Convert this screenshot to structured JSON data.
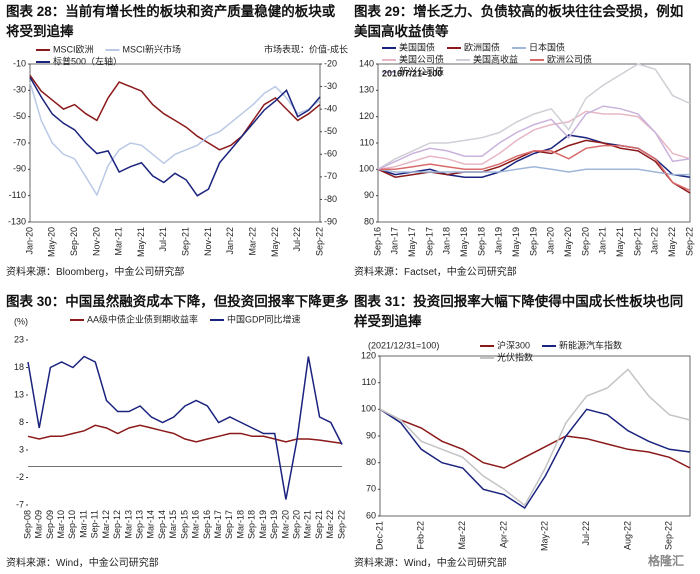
{
  "chart_data": [
    {
      "type": "line",
      "title": "图表 28：当前有增长性的板块和资产质量稳健的板块或将受到追捧",
      "annotation": "市场表现：价值-成长",
      "source": "资料来源：Bloomberg，中金公司研究部",
      "categories": [
        "Jan-20",
        null,
        "May-20",
        null,
        "Sep-20",
        null,
        "Nov-20",
        null,
        "Mar-21",
        null,
        "May-21",
        null,
        "Jul-21",
        null,
        "Sep-21",
        null,
        "Nov-21",
        null,
        "Jan-22",
        null,
        "Mar-22",
        null,
        "May-22",
        null,
        "Jul-22",
        null,
        "Sep-22"
      ],
      "series": [
        {
          "name": "MSCI欧洲",
          "color": "#8b1a1a",
          "axis": "y2",
          "values": [
            -25,
            -32,
            -36,
            -40,
            -38,
            -42,
            -45,
            -35,
            -28,
            -30,
            -32,
            -38,
            -42,
            -45,
            -48,
            -52,
            -55,
            -58,
            -56,
            -52,
            -45,
            -38,
            -35,
            -40,
            -45,
            -42,
            -38
          ]
        },
        {
          "name": "MSCI新兴市场",
          "color": "#b9c9e6",
          "axis": "y2",
          "values": [
            -28,
            -45,
            -55,
            -60,
            -62,
            -70,
            -78,
            -65,
            -58,
            -55,
            -56,
            -60,
            -64,
            -60,
            -58,
            -56,
            -52,
            -50,
            -46,
            -42,
            -38,
            -33,
            -30,
            -35,
            -42,
            -40,
            -36
          ]
        },
        {
          "name": "标普500（左轴）",
          "color": "#1a237e",
          "values": [
            -20,
            -35,
            -48,
            -55,
            -60,
            -70,
            -78,
            -76,
            -92,
            -88,
            -85,
            -95,
            -100,
            -93,
            -98,
            -110,
            -105,
            -85,
            -75,
            -65,
            -55,
            -45,
            -38,
            -30,
            -50,
            -45,
            -35
          ]
        }
      ],
      "ylim": [
        -130,
        -10
      ],
      "yticks": [
        -10,
        -30,
        -50,
        -70,
        -90,
        -110,
        -130
      ],
      "y2lim": [
        -90,
        -20
      ],
      "y2ticks": [
        -20,
        -30,
        -40,
        -50,
        -60,
        -70,
        -80,
        -90
      ]
    },
    {
      "type": "line",
      "title": "图表 29：增长乏力、负债较高的板块往往会受损，例如美国高收益债等",
      "annotation": "2016/7/21=100",
      "source": "资料来源：Factset，中金公司研究部",
      "categories": [
        "Sep-16",
        "Jan-17",
        "May-17",
        "Sep-17",
        "Jan-18",
        "May-18",
        "Sep-18",
        "Jan-19",
        "May-19",
        "Sep-19",
        "Jan-20",
        "May-20",
        "Sep-20",
        "Jan-21",
        "May-21",
        "Sep-21",
        "Jan-22",
        "May-22",
        "Sep-22"
      ],
      "series": [
        {
          "name": "美国国债",
          "color": "#1a237e",
          "values": [
            100,
            98,
            99,
            100,
            98,
            97,
            97,
            99,
            103,
            106,
            108,
            113,
            112,
            110,
            109,
            108,
            104,
            98,
            97
          ]
        },
        {
          "name": "欧洲国债",
          "color": "#8b1a1a",
          "values": [
            100,
            97,
            98,
            99,
            98,
            99,
            99,
            101,
            104,
            107,
            106,
            109,
            111,
            110,
            108,
            107,
            103,
            95,
            91
          ]
        },
        {
          "name": "日本国债",
          "color": "#9fb6d9",
          "values": [
            100,
            99,
            99,
            99,
            99,
            99,
            99,
            99,
            100,
            101,
            100,
            99,
            100,
            100,
            100,
            100,
            99,
            98,
            98
          ]
        },
        {
          "name": "美国公司债",
          "color": "#e7b7c3",
          "values": [
            100,
            101,
            103,
            105,
            104,
            102,
            102,
            106,
            111,
            115,
            117,
            118,
            122,
            121,
            121,
            120,
            114,
            106,
            104
          ]
        },
        {
          "name": "美国高收益",
          "color": "#cfcfd6",
          "values": [
            100,
            104,
            107,
            110,
            110,
            111,
            112,
            114,
            118,
            121,
            123,
            115,
            127,
            132,
            136,
            140,
            138,
            128,
            125
          ]
        },
        {
          "name": "欧洲公司债",
          "color": "#d96a6a",
          "values": [
            100,
            100,
            101,
            102,
            101,
            100,
            100,
            102,
            105,
            107,
            107,
            104,
            108,
            109,
            109,
            108,
            104,
            95,
            92
          ]
        },
        {
          "name": "新兴公司债",
          "color": "#c9b3dc",
          "values": [
            100,
            103,
            106,
            108,
            107,
            105,
            105,
            110,
            114,
            117,
            119,
            112,
            121,
            124,
            123,
            121,
            114,
            103,
            104
          ]
        }
      ],
      "ylim": [
        80,
        140
      ],
      "yticks": [
        80,
        90,
        100,
        110,
        120,
        130,
        140
      ]
    },
    {
      "type": "line",
      "title": "图表 30：中国虽然融资成本下降，但投资回报率下降更多",
      "annotation": "(%)",
      "source": "资料来源：Wind，中金公司研究部",
      "categories": [
        "Sep-08",
        "Mar-09",
        "Sep-09",
        "Mar-10",
        "Sep-10",
        "Mar-11",
        "Sep-11",
        "Mar-12",
        "Sep-12",
        "Mar-13",
        "Sep-13",
        "Mar-14",
        "Sep-14",
        "Mar-15",
        "Sep-15",
        "Mar-16",
        "Sep-16",
        "Mar-17",
        "Sep-17",
        "Mar-18",
        "Sep-18",
        "Mar-19",
        "Sep-19",
        "Mar-20",
        "Sep-20",
        "Mar-21",
        "Sep-21",
        "Mar-22",
        "Sep-22"
      ],
      "series": [
        {
          "name": "AA级中债企业债到期收益率",
          "color": "#8b1a1a",
          "values": [
            5.5,
            5,
            5.5,
            5.5,
            6,
            6.5,
            7.5,
            7,
            6,
            7,
            7.5,
            7,
            6.5,
            6,
            5,
            4.5,
            5,
            5.5,
            6,
            6,
            5.5,
            5.5,
            5,
            4.5,
            5,
            5,
            4.8,
            4.5,
            4.2
          ]
        },
        {
          "name": "中国GDP同比增速",
          "color": "#1a237e",
          "values": [
            19,
            7,
            18,
            19,
            18,
            20,
            19,
            12,
            10,
            10,
            11,
            9,
            8,
            9,
            11,
            12,
            11,
            8,
            9,
            8,
            7,
            6,
            6,
            -6,
            5,
            20,
            9,
            8,
            4
          ]
        }
      ],
      "ylim": [
        -7,
        23
      ],
      "yticks": [
        -7,
        -2,
        3,
        8,
        13,
        18,
        23
      ]
    },
    {
      "type": "line",
      "title": "图表 31：投资回报率大幅下降使得中国成长性板块也同样受到追捧",
      "annotation": "(2021/12/31=100)",
      "source": "资料来源：Wind，中金公司研究部",
      "watermark": "格隆汇",
      "categories": [
        "Dec-21",
        null,
        "Feb-22",
        null,
        "Mar-22",
        null,
        "Apr-22",
        null,
        "May-22",
        null,
        "Jul-22",
        null,
        "Aug-22",
        null,
        "Sep-22",
        null
      ],
      "series": [
        {
          "name": "沪深300",
          "color": "#8b1a1a",
          "values": [
            100,
            96,
            93,
            88,
            85,
            80,
            78,
            82,
            86,
            90,
            89,
            87,
            85,
            84,
            82,
            78
          ]
        },
        {
          "name": "新能源汽车指数",
          "color": "#1a237e",
          "values": [
            100,
            95,
            85,
            80,
            78,
            70,
            68,
            63,
            75,
            90,
            100,
            98,
            92,
            88,
            85,
            84
          ]
        },
        {
          "name": "光伏指数",
          "color": "#c4c4c4",
          "values": [
            100,
            96,
            88,
            85,
            82,
            75,
            70,
            64,
            78,
            95,
            105,
            108,
            115,
            105,
            98,
            96
          ]
        }
      ],
      "ylim": [
        60,
        120
      ],
      "yticks": [
        60,
        70,
        80,
        90,
        100,
        110,
        120
      ]
    }
  ]
}
